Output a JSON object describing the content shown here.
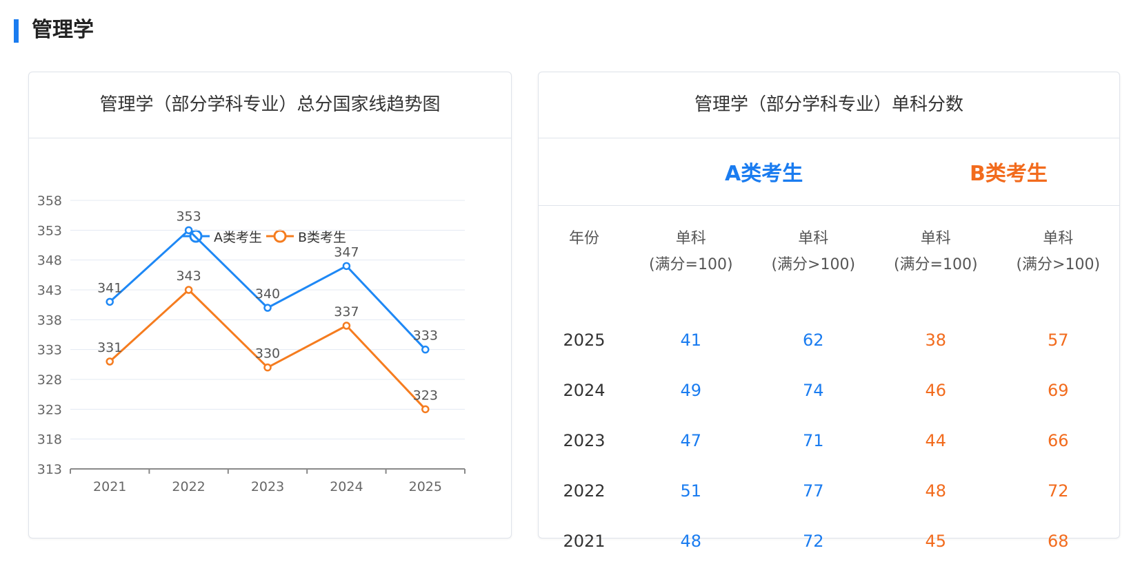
{
  "section": {
    "title": "管理学"
  },
  "left_card": {
    "title": "管理学（部分学科专业）总分国家线趋势图"
  },
  "right_card": {
    "title": "管理学（部分学科专业）单科分数",
    "type_a": "A类考生",
    "type_b": "B类考生",
    "headers": [
      {
        "line1": "年份",
        "line2": ""
      },
      {
        "line1": "单科",
        "line2": "(满分=100)"
      },
      {
        "line1": "单科",
        "line2": "(满分>100)"
      },
      {
        "line1": "单科",
        "line2": "(满分=100)"
      },
      {
        "line1": "单科",
        "line2": "(满分>100)"
      }
    ],
    "rows": [
      {
        "year": "2025",
        "a1": "41",
        "a2": "62",
        "b1": "38",
        "b2": "57"
      },
      {
        "year": "2024",
        "a1": "49",
        "a2": "74",
        "b1": "46",
        "b2": "69"
      },
      {
        "year": "2023",
        "a1": "47",
        "a2": "71",
        "b1": "44",
        "b2": "66"
      },
      {
        "year": "2022",
        "a1": "51",
        "a2": "77",
        "b1": "48",
        "b2": "72"
      },
      {
        "year": "2021",
        "a1": "48",
        "a2": "72",
        "b1": "45",
        "b2": "68"
      }
    ]
  },
  "colors": {
    "accent": "#1a7cf0",
    "series_a": "#1e88f5",
    "series_b": "#f57c1f",
    "grid": "#e3e8f2"
  },
  "chart_data": {
    "type": "line",
    "categories": [
      "2021",
      "2022",
      "2023",
      "2024",
      "2025"
    ],
    "series": [
      {
        "name": "A类考生",
        "values": [
          341,
          353,
          340,
          347,
          333
        ]
      },
      {
        "name": "B类考生",
        "values": [
          331,
          343,
          330,
          337,
          323
        ]
      }
    ],
    "yticks": [
      313,
      318,
      323,
      328,
      333,
      338,
      343,
      348,
      353,
      358
    ],
    "ylim": [
      313,
      358
    ],
    "grid": true,
    "legend_position": "top-center"
  }
}
